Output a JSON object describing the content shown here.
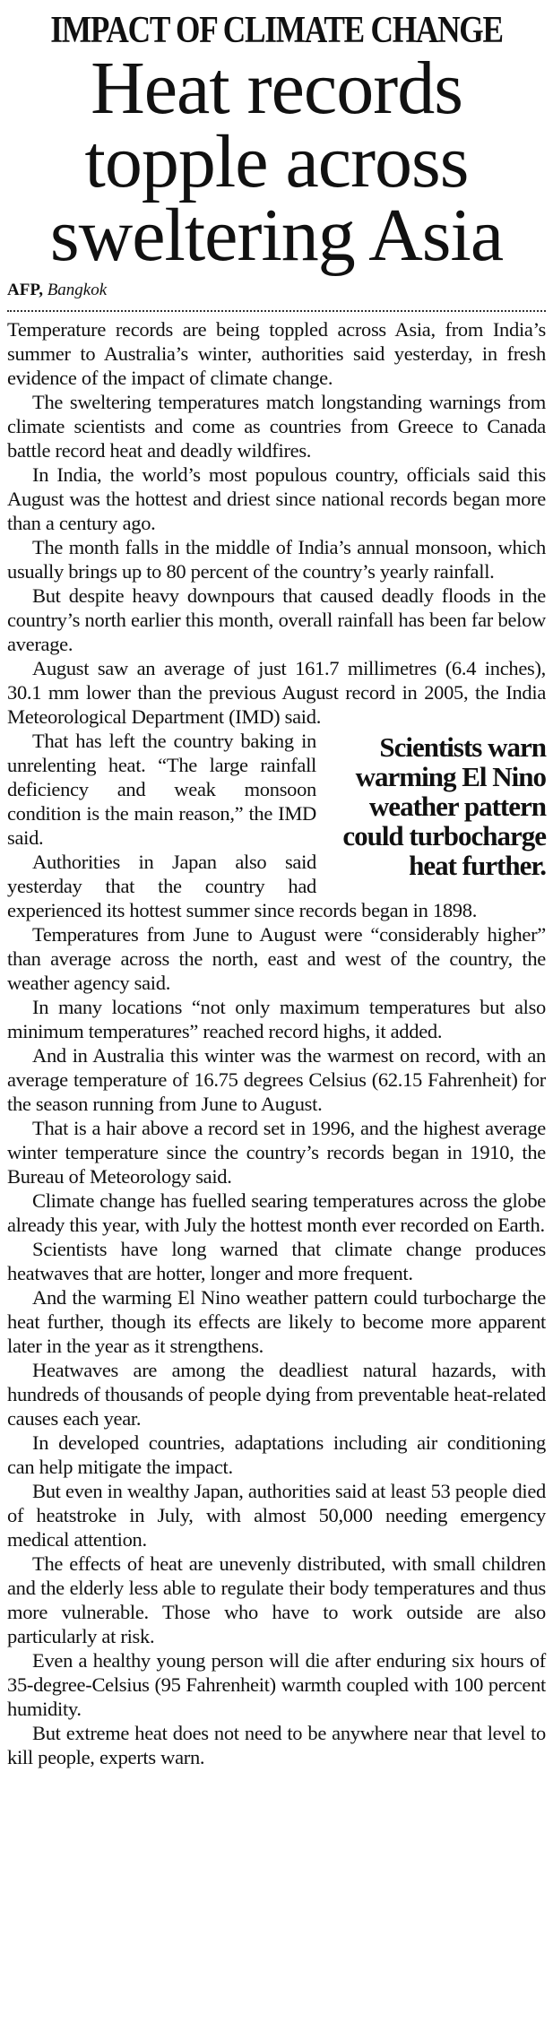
{
  "article": {
    "kicker": "IMPACT OF CLIMATE CHANGE",
    "headline": "Heat records topple across sweltering Asia",
    "byline": {
      "agency": "AFP,",
      "location": "Bangkok"
    },
    "pullquote": "Scientists warn warming El Nino weather pattern could turbocharge heat further.",
    "paragraphs": [
      "Temperature records are being toppled across Asia, from India’s summer to Australia’s winter, authorities said yesterday, in fresh evidence of the impact of climate change.",
      "The sweltering temperatures match longstanding warnings from climate scientists and come as countries from Greece to Canada battle record heat and deadly wildfires.",
      "In India, the world’s most populous country, officials said this August was the hottest and driest since national records began more than a century ago.",
      "The month falls in the middle of India’s annual monsoon, which usually brings up to 80 percent of the country’s yearly rainfall.",
      "But despite heavy downpours that caused deadly floods in the country’s north earlier this month, overall rainfall has been far below average.",
      "August saw an average of just 161.7 millimetres (6.4 inches), 30.1 mm lower than the previous August record in 2005, the India Meteorological Department (IMD) said.",
      "That has left the country baking in unrelenting heat. “The large rainfall deficiency and weak monsoon condition is the main reason,” the IMD said.",
      "Authorities in Japan also said yesterday that the country had experienced its hottest summer since records began in 1898.",
      "Temperatures from June to August were “considerably higher” than average across the north, east and west of the country, the weather agency said.",
      "In many locations “not only maximum temperatures but also minimum temperatures” reached record highs, it added.",
      "And in Australia this winter was the warmest on record, with an average temperature of 16.75 degrees Celsius (62.15 Fahrenheit) for the season running from June to August.",
      "That is a hair above a record set in 1996, and the highest average winter temperature since the country’s records began in 1910, the Bureau of Meteorology said.",
      "Climate change has fuelled searing temperatures across the globe already this year, with July the hottest month ever recorded on Earth.",
      "Scientists have long warned that climate change produces heatwaves that are hotter, longer and more frequent.",
      "And the warming El Nino weather pattern could turbocharge the heat further, though its effects are likely to become more apparent later in the year as it strengthens.",
      "Heatwaves are among the deadliest natural hazards, with hundreds of thousands of people dying from preventable heat-related causes each year.",
      "In developed countries, adaptations including air conditioning can help mitigate the impact.",
      "But even in wealthy Japan, authorities said at least 53 people died of heatstroke in July, with almost 50,000 needing emergency medical attention.",
      "The effects of heat are unevenly distributed, with small children and the elderly less able to regulate their body temperatures and thus more vulnerable. Those who have to work outside are also particularly at risk.",
      "Even a healthy young person will die after enduring six hours of 35-degree-Celsius (95 Fahrenheit) warmth coupled with 100 percent humidity.",
      "But extreme heat does not need to be anywhere near that level to kill people, experts warn."
    ]
  }
}
